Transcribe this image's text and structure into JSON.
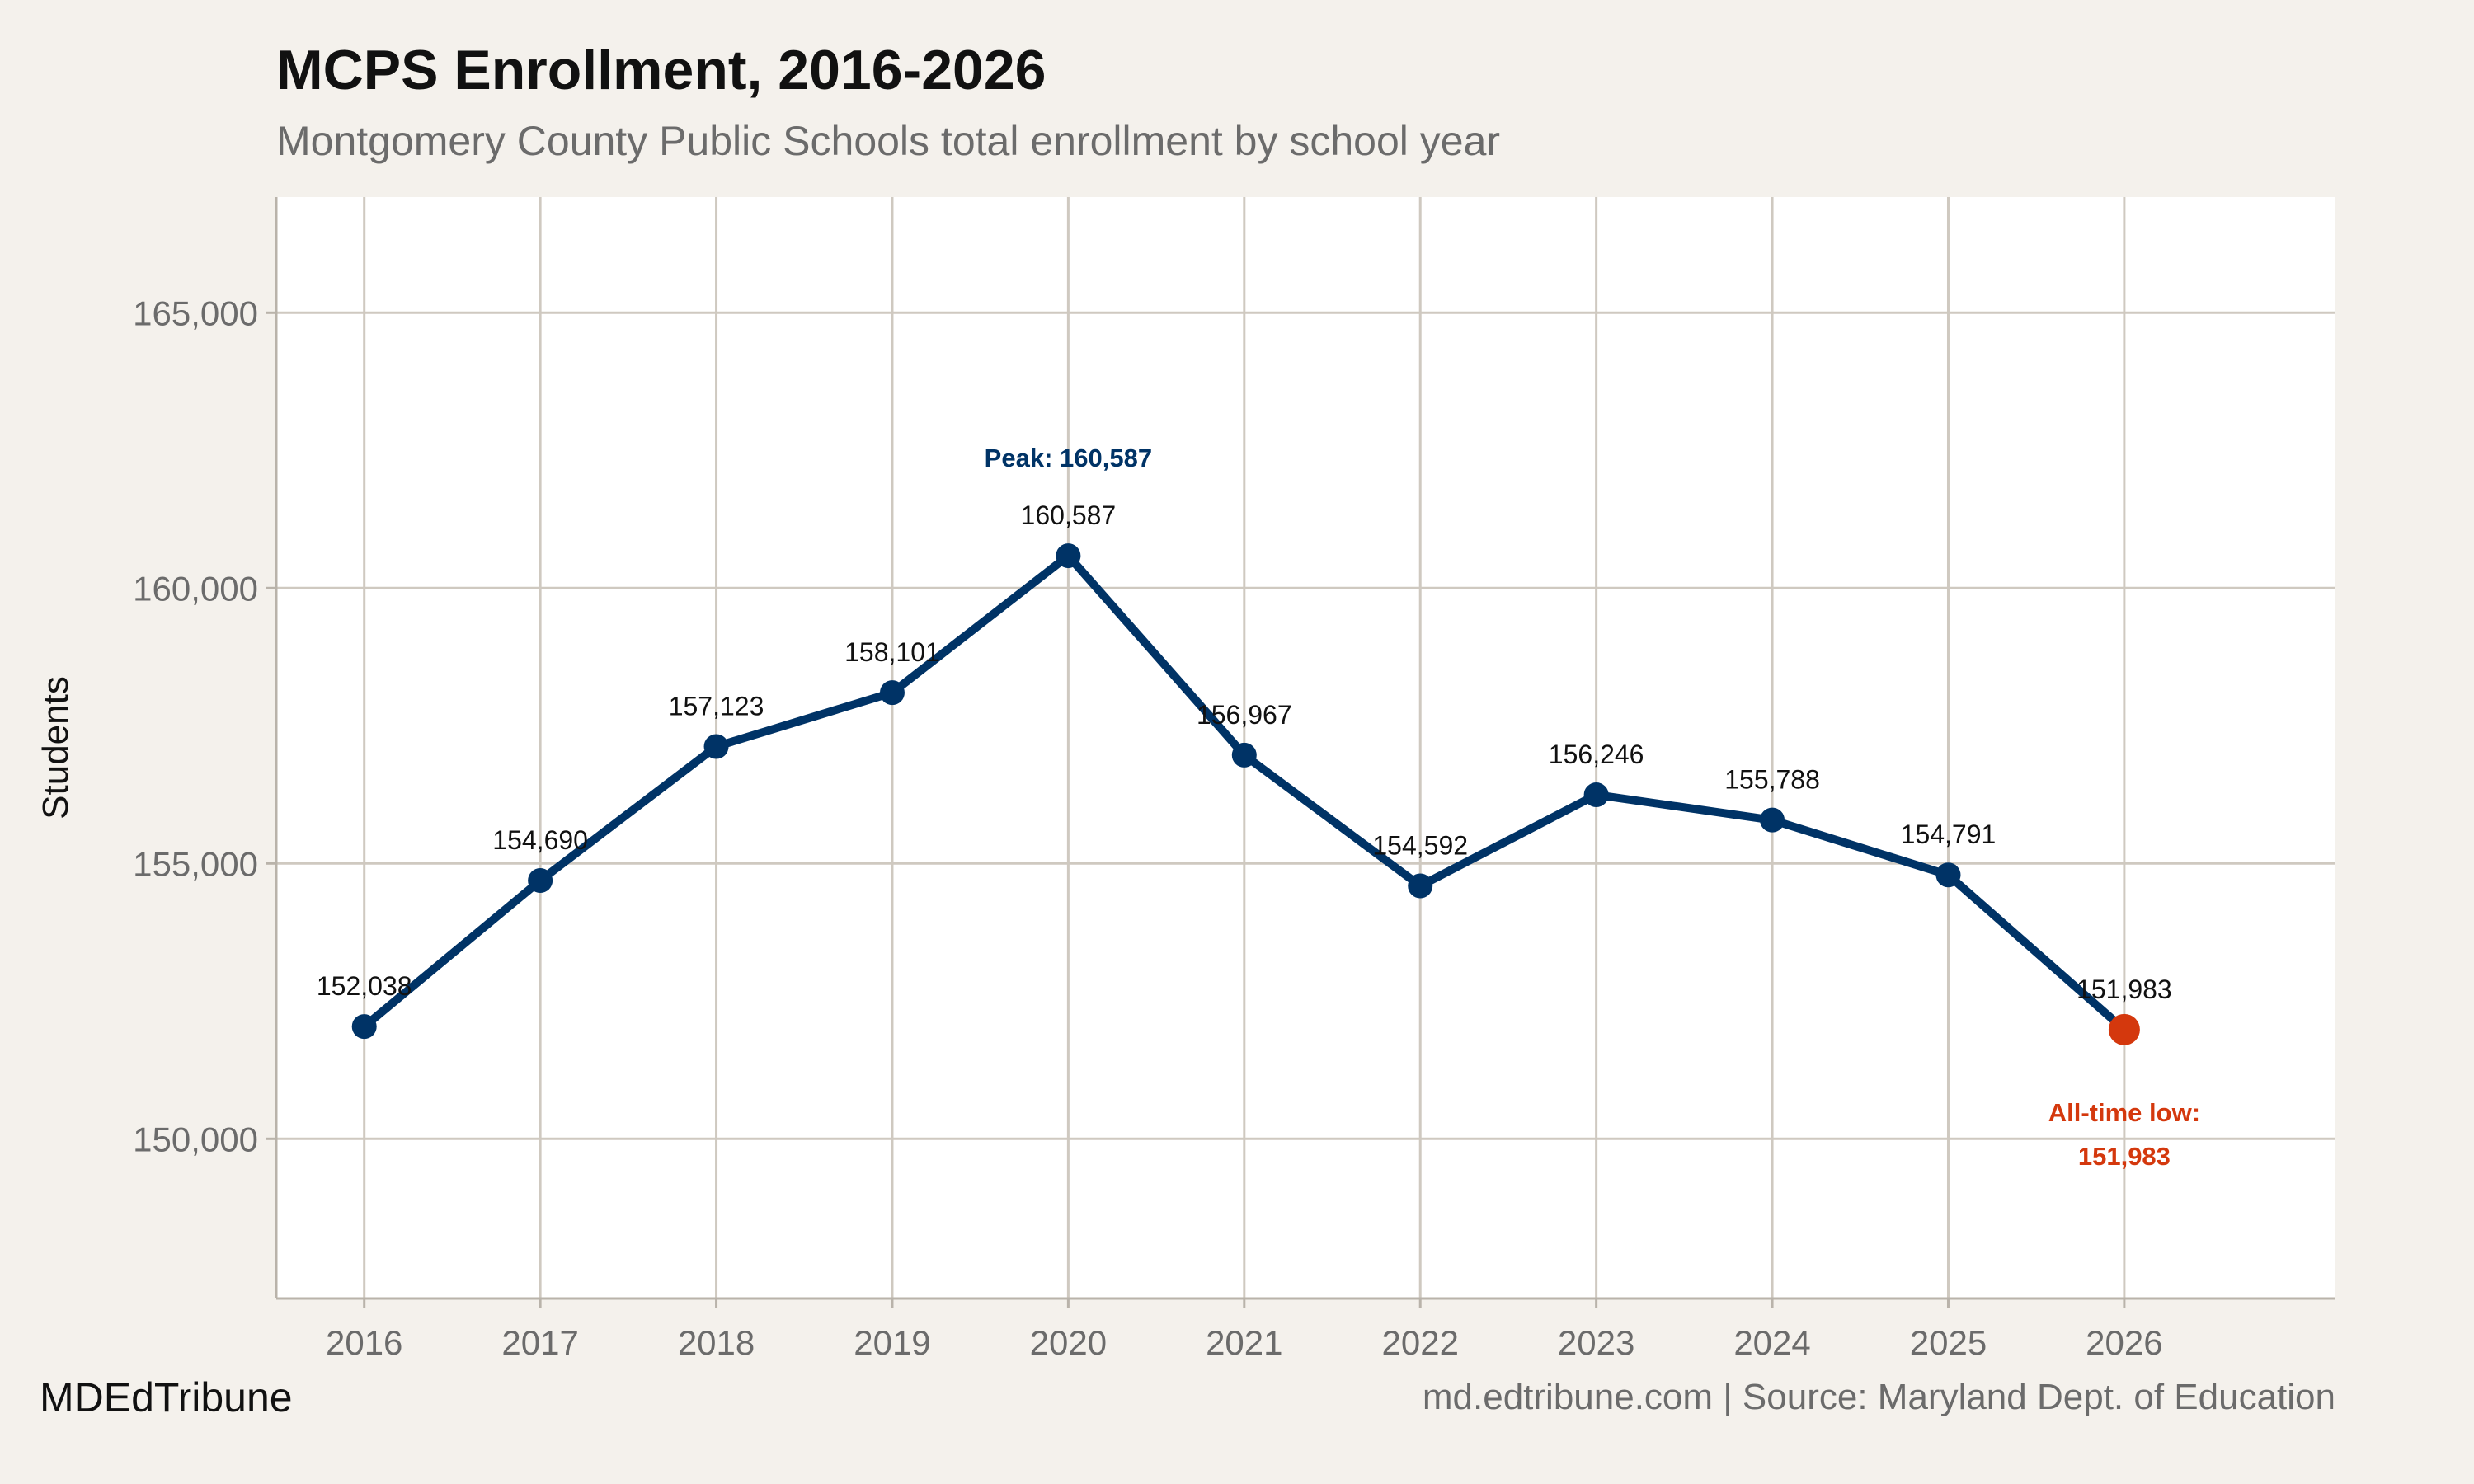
{
  "chart_data": {
    "type": "line",
    "title": "MCPS Enrollment, 2016-2026",
    "subtitle": "Montgomery County Public Schools total enrollment by school year",
    "xlabel": "",
    "ylabel": "Students",
    "x": [
      2016,
      2017,
      2018,
      2019,
      2020,
      2021,
      2022,
      2023,
      2024,
      2025,
      2026
    ],
    "values": [
      152038,
      154690,
      157123,
      158101,
      160587,
      156967,
      154592,
      156246,
      155788,
      154791,
      151983
    ],
    "data_labels": [
      "152,038",
      "154,690",
      "157,123",
      "158,101",
      "160,587",
      "156,967",
      "154,592",
      "156,246",
      "155,788",
      "154,791",
      "151,983"
    ],
    "x_ticks": [
      "2016",
      "2017",
      "2018",
      "2019",
      "2020",
      "2021",
      "2022",
      "2023",
      "2024",
      "2025",
      "2026"
    ],
    "y_ticks": [
      150000,
      155000,
      160000,
      165000
    ],
    "y_tick_labels": [
      "150,000",
      "155,000",
      "160,000",
      "165,000"
    ],
    "xlim": [
      2015.5,
      2027.2
    ],
    "ylim": [
      147100,
      167100
    ],
    "grid": true,
    "annotations": {
      "peak": {
        "x": 2020,
        "text": "Peak: 160,587"
      },
      "low": {
        "x": 2026,
        "line1": "All-time low:",
        "line2": "151,983"
      }
    },
    "colors": {
      "line": "#003366",
      "highlight": "#d4380d",
      "grid": "#cfc9c0",
      "panel": "#ffffff",
      "background": "#f4f1ec"
    }
  },
  "footer": {
    "brand": "MDEdTribune",
    "source": "md.edtribune.com | Source: Maryland Dept. of Education"
  }
}
